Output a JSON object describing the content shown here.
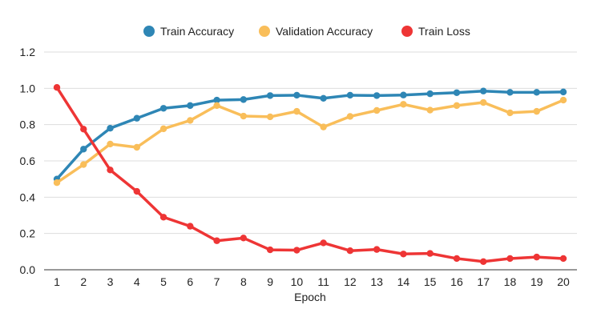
{
  "chart_data": {
    "type": "line",
    "title": "",
    "xlabel": "Epoch",
    "ylabel": "",
    "x": [
      1,
      2,
      3,
      4,
      5,
      6,
      7,
      8,
      9,
      10,
      11,
      12,
      13,
      14,
      15,
      16,
      17,
      18,
      19,
      20
    ],
    "ylim": [
      0,
      1.2
    ],
    "yticks": [
      0.0,
      0.2,
      0.4,
      0.6,
      0.8,
      1.0,
      1.2
    ],
    "ytick_labels": [
      "0.0",
      "0.2",
      "0.4",
      "0.6",
      "0.8",
      "1.0",
      "1.2"
    ],
    "grid": true,
    "legend_position": "top-center",
    "series": [
      {
        "name": "Train Accuracy",
        "color": "#2E86B5",
        "values": [
          0.5,
          0.665,
          0.78,
          0.835,
          0.89,
          0.905,
          0.935,
          0.938,
          0.96,
          0.962,
          0.945,
          0.962,
          0.96,
          0.963,
          0.97,
          0.976,
          0.985,
          0.978,
          0.978,
          0.98
        ]
      },
      {
        "name": "Validation Accuracy",
        "color": "#F9BE5A",
        "values": [
          0.48,
          0.58,
          0.693,
          0.675,
          0.777,
          0.823,
          0.905,
          0.847,
          0.843,
          0.873,
          0.787,
          0.845,
          0.878,
          0.912,
          0.88,
          0.905,
          0.922,
          0.865,
          0.873,
          0.935
        ]
      },
      {
        "name": "Train Loss",
        "color": "#EE3535",
        "values": [
          1.005,
          0.775,
          0.55,
          0.432,
          0.29,
          0.24,
          0.16,
          0.175,
          0.11,
          0.108,
          0.148,
          0.105,
          0.112,
          0.087,
          0.09,
          0.062,
          0.045,
          0.062,
          0.07,
          0.062
        ]
      }
    ]
  }
}
